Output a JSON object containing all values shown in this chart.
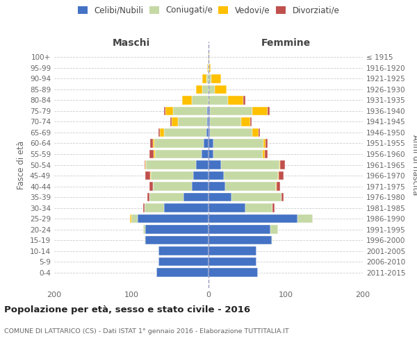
{
  "age_groups": [
    "100+",
    "95-99",
    "90-94",
    "85-89",
    "80-84",
    "75-79",
    "70-74",
    "65-69",
    "60-64",
    "55-59",
    "50-54",
    "45-49",
    "40-44",
    "35-39",
    "30-34",
    "25-29",
    "20-24",
    "15-19",
    "10-14",
    "5-9",
    "0-4"
  ],
  "birth_years": [
    "≤ 1915",
    "1916-1920",
    "1921-1925",
    "1926-1930",
    "1931-1935",
    "1936-1940",
    "1941-1945",
    "1946-1950",
    "1951-1955",
    "1956-1960",
    "1961-1965",
    "1966-1970",
    "1971-1975",
    "1976-1980",
    "1981-1985",
    "1986-1990",
    "1991-1995",
    "1996-2000",
    "2001-2005",
    "2006-2010",
    "2011-2015"
  ],
  "males": {
    "celibe": [
      0,
      0,
      0,
      0,
      0,
      2,
      2,
      3,
      6,
      9,
      16,
      20,
      22,
      32,
      58,
      92,
      82,
      82,
      65,
      65,
      68
    ],
    "coniugato": [
      1,
      1,
      3,
      8,
      22,
      44,
      38,
      55,
      64,
      60,
      65,
      55,
      50,
      45,
      25,
      8,
      3,
      1,
      0,
      0,
      0
    ],
    "vedovo": [
      0,
      1,
      5,
      8,
      12,
      10,
      8,
      5,
      2,
      2,
      1,
      1,
      0,
      0,
      0,
      2,
      0,
      0,
      0,
      0,
      0
    ],
    "divorziato": [
      0,
      0,
      0,
      0,
      0,
      2,
      2,
      2,
      4,
      6,
      1,
      6,
      5,
      2,
      2,
      0,
      0,
      0,
      0,
      0,
      0
    ]
  },
  "females": {
    "nubile": [
      0,
      0,
      0,
      0,
      0,
      2,
      2,
      2,
      6,
      6,
      16,
      20,
      22,
      30,
      48,
      115,
      80,
      82,
      62,
      62,
      64
    ],
    "coniugata": [
      0,
      1,
      4,
      8,
      25,
      55,
      40,
      55,
      65,
      64,
      76,
      70,
      65,
      65,
      35,
      20,
      10,
      1,
      0,
      0,
      0
    ],
    "vedova": [
      1,
      2,
      12,
      15,
      20,
      20,
      12,
      8,
      3,
      3,
      1,
      1,
      1,
      0,
      0,
      0,
      0,
      0,
      0,
      0,
      0
    ],
    "divorziata": [
      0,
      0,
      0,
      0,
      3,
      2,
      2,
      2,
      3,
      4,
      6,
      6,
      5,
      2,
      3,
      0,
      0,
      0,
      0,
      0,
      0
    ]
  },
  "color_celibe": "#4472c4",
  "color_coniugato": "#c5d9a5",
  "color_vedovo": "#ffc000",
  "color_divorziato": "#c0504d",
  "legend_labels": [
    "Celibi/Nubili",
    "Coniugati/e",
    "Vedovi/e",
    "Divorziati/e"
  ],
  "title": "Popolazione per età, sesso e stato civile - 2016",
  "subtitle": "COMUNE DI LATTARICO (CS) - Dati ISTAT 1° gennaio 2016 - Elaborazione TUTTITALIA.IT",
  "ylabel_left": "Fasce di età",
  "ylabel_right": "Anni di nascita",
  "xlabel_left": "Maschi",
  "xlabel_right": "Femmine",
  "xlim": 200,
  "background_color": "#ffffff",
  "grid_color": "#cccccc",
  "text_color": "#666666",
  "title_color": "#222222"
}
